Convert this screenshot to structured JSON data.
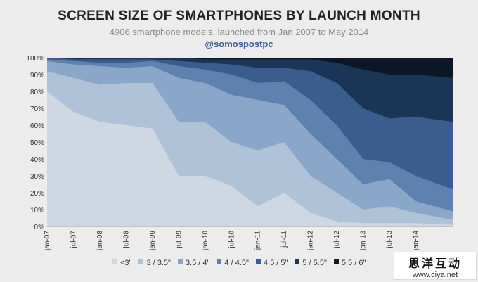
{
  "header": {
    "title": "SCREEN SIZE OF SMARTPHONES BY LAUNCH MONTH",
    "subtitle": "4906 smartphone models, launched from Jan 2007 to May 2014",
    "handle": "@somospostpc"
  },
  "watermark": {
    "brand": "思洋互动",
    "url": "www.ciya.net"
  },
  "chart_data": {
    "type": "area",
    "stacking": "percent",
    "title": "SCREEN SIZE OF SMARTPHONES BY LAUNCH MONTH",
    "ylim": [
      0,
      100
    ],
    "y_ticks": [
      "0%",
      "10%",
      "20%",
      "30%",
      "40%",
      "50%",
      "60%",
      "70%",
      "80%",
      "90%",
      "100%"
    ],
    "x_tick_labels": [
      "jan-07",
      "jul-07",
      "jan-08",
      "jul-08",
      "jan-09",
      "jul-09",
      "jan-10",
      "jul-10",
      "jan-11",
      "jul-11",
      "jan-12",
      "jul-12",
      "jan-13",
      "jul-13",
      "jan-14"
    ],
    "legend_position": "bottom",
    "note": "Cumulative upper boundaries (%) per half-year, read off the chart; each series value = its boundary minus the previous one.",
    "periods": [
      "jan-07",
      "jul-07",
      "jan-08",
      "jul-08",
      "jan-09",
      "jul-09",
      "jan-10",
      "jul-10",
      "jan-11",
      "jul-11",
      "jan-12",
      "jul-12",
      "jan-13",
      "jul-13",
      "jan-14",
      "may-14"
    ],
    "series": [
      {
        "name": "<3\"",
        "color": "#cfd7e2",
        "cumulative": [
          80,
          68,
          62,
          60,
          58,
          30,
          30,
          24,
          12,
          20,
          8,
          3,
          2,
          2,
          2,
          1
        ]
      },
      {
        "name": "3 / 3.5\"",
        "color": "#b0c2d8",
        "cumulative": [
          92,
          88,
          84,
          85,
          85,
          62,
          62,
          50,
          45,
          50,
          30,
          20,
          10,
          12,
          8,
          4
        ]
      },
      {
        "name": "3.5 / 4\"",
        "color": "#8aa6c8",
        "cumulative": [
          98,
          96,
          95,
          94,
          95,
          88,
          85,
          78,
          75,
          72,
          55,
          40,
          25,
          28,
          15,
          9
        ]
      },
      {
        "name": "4 / 4.5\"",
        "color": "#5f81b0",
        "cumulative": [
          99,
          98,
          97,
          97,
          98,
          95,
          93,
          90,
          85,
          86,
          75,
          60,
          40,
          38,
          30,
          22
        ]
      },
      {
        "name": "4.5 / 5\"",
        "color": "#3a5d8e",
        "cumulative": [
          100,
          99,
          99,
          99,
          99,
          98,
          97,
          96,
          94,
          94,
          92,
          85,
          70,
          64,
          65,
          62
        ]
      },
      {
        "name": "5 / 5.5\"",
        "color": "#1b3557",
        "cumulative": [
          100,
          100,
          100,
          100,
          100,
          100,
          99,
          99,
          99,
          99,
          99,
          97,
          93,
          90,
          90,
          88
        ]
      },
      {
        "name": "5.5 / 6\"",
        "color": "#0b1626",
        "cumulative": [
          100,
          100,
          100,
          100,
          100,
          100,
          100,
          100,
          100,
          100,
          100,
          100,
          100,
          100,
          100,
          100
        ]
      }
    ]
  }
}
